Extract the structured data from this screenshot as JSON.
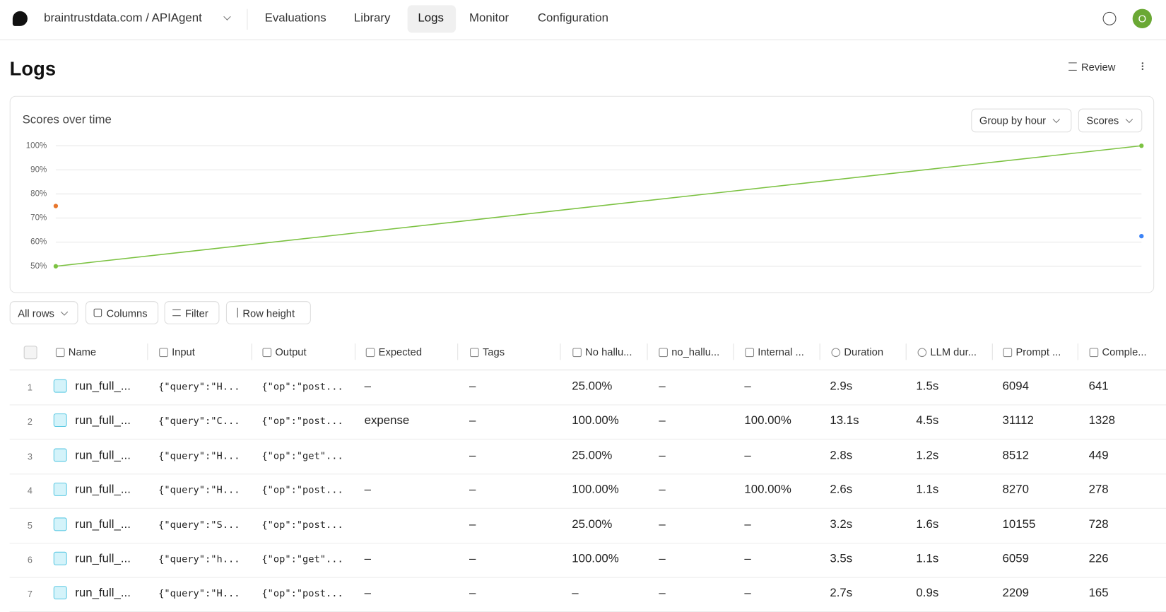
{
  "nav": {
    "project": "braintrustdata.com / APIAgent",
    "items": [
      "Evaluations",
      "Library",
      "Logs",
      "Monitor",
      "Configuration"
    ],
    "avatar": "O"
  },
  "header": {
    "title": "Logs",
    "review": "Review"
  },
  "chart_controls": [
    "Group by hour",
    "Scores"
  ],
  "chart_data": {
    "type": "line",
    "title": "Scores over time",
    "categories": [
      null,
      null
    ],
    "series": [
      {
        "color": "#7cc242",
        "values": [
          50,
          100
        ]
      },
      {
        "color": "#e8762c",
        "values": [
          75,
          null
        ]
      },
      {
        "color": "#3b82f6",
        "values": [
          null,
          62.5
        ]
      }
    ],
    "ylim": [
      50,
      100
    ],
    "yticks": [
      {
        "value": 50,
        "label": "50%"
      },
      {
        "value": 60,
        "label": "60%"
      },
      {
        "value": 70,
        "label": "70%"
      },
      {
        "value": 80,
        "label": "80%"
      },
      {
        "value": 90,
        "label": "90%"
      },
      {
        "value": 100,
        "label": "100%"
      }
    ],
    "grid": true
  },
  "toolbar": [
    "All rows",
    "Columns",
    "Filter",
    "Row height"
  ],
  "table": {
    "columns": [
      "Name",
      "Input",
      "Output",
      "Expected",
      "Tags",
      "No hallu...",
      "no_hallu...",
      "Internal ...",
      "Duration",
      "LLM dur...",
      "Prompt ...",
      "Comple..."
    ],
    "rows": [
      [
        "1",
        "run_full_...",
        "{\"query\":\"H...",
        "{\"op\":\"post...",
        "–",
        "–",
        "25.00%",
        "–",
        "–",
        "2.9s",
        "1.5s",
        "6094",
        "641"
      ],
      [
        "2",
        "run_full_...",
        "{\"query\":\"C...",
        "{\"op\":\"post...",
        "expense",
        "–",
        "100.00%",
        "–",
        "100.00%",
        "13.1s",
        "4.5s",
        "31112",
        "1328"
      ],
      [
        "3",
        "run_full_...",
        "{\"query\":\"H...",
        "{\"op\":\"get\"...",
        null,
        "–",
        "25.00%",
        "–",
        "–",
        "2.8s",
        "1.2s",
        "8512",
        "449"
      ],
      [
        "4",
        "run_full_...",
        "{\"query\":\"H...",
        "{\"op\":\"post...",
        "–",
        "–",
        "100.00%",
        "–",
        "100.00%",
        "2.6s",
        "1.1s",
        "8270",
        "278"
      ],
      [
        "5",
        "run_full_...",
        "{\"query\":\"S...",
        "{\"op\":\"post...",
        null,
        "–",
        "25.00%",
        "–",
        "–",
        "3.2s",
        "1.6s",
        "10155",
        "728"
      ],
      [
        "6",
        "run_full_...",
        "{\"query\":\"h...",
        "{\"op\":\"get\"...",
        "–",
        "–",
        "100.00%",
        "–",
        "–",
        "3.5s",
        "1.1s",
        "6059",
        "226"
      ],
      [
        "7",
        "run_full_...",
        "{\"query\":\"H...",
        "{\"op\":\"post...",
        "–",
        "–",
        "–",
        "–",
        "–",
        "2.7s",
        "0.9s",
        "2209",
        "165"
      ]
    ]
  }
}
